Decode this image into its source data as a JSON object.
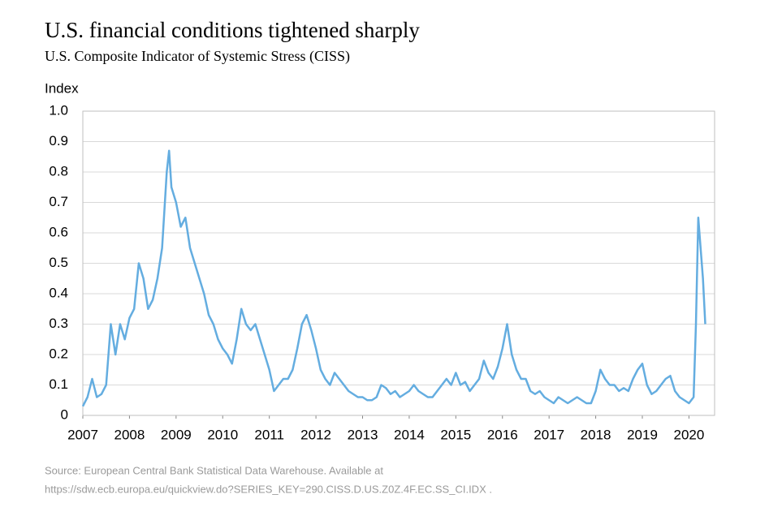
{
  "chart_data": {
    "type": "line",
    "title": "U.S. financial conditions tightened sharply",
    "subtitle": "U.S. Composite Indicator of Systemic Stress (CISS)",
    "y_label": "Index",
    "source": [
      "Source: European Central Bank Statistical Data Warehouse.  Available at",
      "https://sdw.ecb.europa.eu/quickview.do?SERIES_KEY=290.CISS.D.US.Z0Z.4F.EC.SS_CI.IDX ."
    ],
    "color": "#64ade0",
    "x": [
      2007.0,
      2007.1,
      2007.2,
      2007.3,
      2007.4,
      2007.5,
      2007.6,
      2007.7,
      2007.8,
      2007.9,
      2008.0,
      2008.1,
      2008.2,
      2008.3,
      2008.4,
      2008.5,
      2008.6,
      2008.7,
      2008.8,
      2008.85,
      2008.9,
      2009.0,
      2009.1,
      2009.2,
      2009.3,
      2009.4,
      2009.5,
      2009.6,
      2009.7,
      2009.8,
      2009.9,
      2010.0,
      2010.1,
      2010.2,
      2010.3,
      2010.4,
      2010.5,
      2010.6,
      2010.7,
      2010.8,
      2010.9,
      2011.0,
      2011.1,
      2011.2,
      2011.3,
      2011.4,
      2011.5,
      2011.6,
      2011.7,
      2011.8,
      2011.9,
      2012.0,
      2012.1,
      2012.2,
      2012.3,
      2012.4,
      2012.5,
      2012.6,
      2012.7,
      2012.8,
      2012.9,
      2013.0,
      2013.1,
      2013.2,
      2013.3,
      2013.4,
      2013.5,
      2013.6,
      2013.7,
      2013.8,
      2013.9,
      2014.0,
      2014.1,
      2014.2,
      2014.3,
      2014.4,
      2014.5,
      2014.6,
      2014.7,
      2014.8,
      2014.9,
      2015.0,
      2015.1,
      2015.2,
      2015.3,
      2015.4,
      2015.5,
      2015.6,
      2015.7,
      2015.8,
      2015.9,
      2016.0,
      2016.1,
      2016.2,
      2016.3,
      2016.4,
      2016.5,
      2016.6,
      2016.7,
      2016.8,
      2016.9,
      2017.0,
      2017.1,
      2017.2,
      2017.3,
      2017.4,
      2017.5,
      2017.6,
      2017.7,
      2017.8,
      2017.9,
      2018.0,
      2018.1,
      2018.2,
      2018.3,
      2018.4,
      2018.5,
      2018.6,
      2018.7,
      2018.8,
      2018.9,
      2019.0,
      2019.1,
      2019.2,
      2019.3,
      2019.4,
      2019.5,
      2019.6,
      2019.7,
      2019.8,
      2019.9,
      2020.0,
      2020.1,
      2020.15,
      2020.2,
      2020.25,
      2020.3,
      2020.35
    ],
    "values": [
      0.03,
      0.06,
      0.12,
      0.06,
      0.07,
      0.1,
      0.3,
      0.2,
      0.3,
      0.25,
      0.32,
      0.35,
      0.5,
      0.45,
      0.35,
      0.38,
      0.45,
      0.55,
      0.8,
      0.87,
      0.75,
      0.7,
      0.62,
      0.65,
      0.55,
      0.5,
      0.45,
      0.4,
      0.33,
      0.3,
      0.25,
      0.22,
      0.2,
      0.17,
      0.25,
      0.35,
      0.3,
      0.28,
      0.3,
      0.25,
      0.2,
      0.15,
      0.08,
      0.1,
      0.12,
      0.12,
      0.15,
      0.22,
      0.3,
      0.33,
      0.28,
      0.22,
      0.15,
      0.12,
      0.1,
      0.14,
      0.12,
      0.1,
      0.08,
      0.07,
      0.06,
      0.06,
      0.05,
      0.05,
      0.06,
      0.1,
      0.09,
      0.07,
      0.08,
      0.06,
      0.07,
      0.08,
      0.1,
      0.08,
      0.07,
      0.06,
      0.06,
      0.08,
      0.1,
      0.12,
      0.1,
      0.14,
      0.1,
      0.11,
      0.08,
      0.1,
      0.12,
      0.18,
      0.14,
      0.12,
      0.16,
      0.22,
      0.3,
      0.2,
      0.15,
      0.12,
      0.12,
      0.08,
      0.07,
      0.08,
      0.06,
      0.05,
      0.04,
      0.06,
      0.05,
      0.04,
      0.05,
      0.06,
      0.05,
      0.04,
      0.04,
      0.08,
      0.15,
      0.12,
      0.1,
      0.1,
      0.08,
      0.09,
      0.08,
      0.12,
      0.15,
      0.17,
      0.1,
      0.07,
      0.08,
      0.1,
      0.12,
      0.13,
      0.08,
      0.06,
      0.05,
      0.04,
      0.06,
      0.3,
      0.65,
      0.55,
      0.45,
      0.3
    ],
    "xlim": [
      2007,
      2020.55
    ],
    "xticks": [
      2007,
      2008,
      2009,
      2010,
      2011,
      2012,
      2013,
      2014,
      2015,
      2016,
      2017,
      2018,
      2019,
      2020
    ],
    "ylim": [
      0,
      1
    ],
    "yticks": [
      0,
      0.1,
      0.2,
      0.3,
      0.4,
      0.5,
      0.6,
      0.7,
      0.8,
      0.9,
      {
        "value": 1,
        "label": "1.0"
      }
    ],
    "grid": true
  }
}
